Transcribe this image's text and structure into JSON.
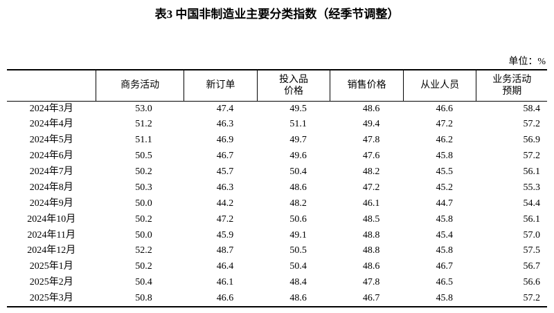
{
  "header": {
    "title": "表3 中国非制造业主要分类指数（经季节调整）",
    "unit": "单位：%"
  },
  "table": {
    "columns": [
      "商务活动",
      "新订单",
      "投入品\n价格",
      "销售价格",
      "从业人员",
      "业务活动\n预期"
    ],
    "rows": [
      [
        "2024年3月",
        "53.0",
        "47.4",
        "49.5",
        "48.6",
        "46.6",
        "58.4"
      ],
      [
        "2024年4月",
        "51.2",
        "46.3",
        "51.1",
        "49.4",
        "47.2",
        "57.2"
      ],
      [
        "2024年5月",
        "51.1",
        "46.9",
        "49.7",
        "47.8",
        "46.2",
        "56.9"
      ],
      [
        "2024年6月",
        "50.5",
        "46.7",
        "49.6",
        "47.6",
        "45.8",
        "57.2"
      ],
      [
        "2024年7月",
        "50.2",
        "45.7",
        "50.4",
        "48.2",
        "45.5",
        "56.1"
      ],
      [
        "2024年8月",
        "50.3",
        "46.3",
        "48.6",
        "47.2",
        "45.2",
        "55.3"
      ],
      [
        "2024年9月",
        "50.0",
        "44.2",
        "48.2",
        "46.1",
        "44.7",
        "54.4"
      ],
      [
        "2024年10月",
        "50.2",
        "47.2",
        "50.6",
        "48.5",
        "45.8",
        "56.1"
      ],
      [
        "2024年11月",
        "50.0",
        "45.9",
        "49.1",
        "48.8",
        "45.4",
        "57.0"
      ],
      [
        "2024年12月",
        "52.2",
        "48.7",
        "50.5",
        "48.8",
        "45.8",
        "57.5"
      ],
      [
        "2025年1月",
        "50.2",
        "46.4",
        "50.4",
        "48.6",
        "46.7",
        "56.7"
      ],
      [
        "2025年2月",
        "50.4",
        "46.1",
        "48.4",
        "47.8",
        "46.5",
        "56.6"
      ],
      [
        "2025年3月",
        "50.8",
        "46.6",
        "48.6",
        "46.7",
        "45.8",
        "57.2"
      ]
    ]
  }
}
